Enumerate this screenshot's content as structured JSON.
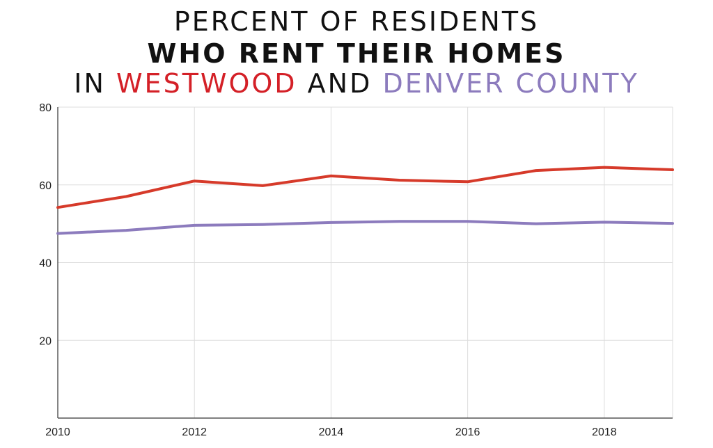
{
  "title": {
    "line1": "PERCENT OF RESIDENTS",
    "line2": "WHO RENT THEIR HOMES",
    "line3_prefix": "IN",
    "line3_series1": "WESTWOOD",
    "line3_mid": "AND",
    "line3_series2": "DENVER COUNTY"
  },
  "chart_data": {
    "type": "line",
    "x": [
      2010,
      2011,
      2012,
      2013,
      2014,
      2015,
      2016,
      2017,
      2018,
      2019
    ],
    "series": [
      {
        "name": "WESTWOOD",
        "color": "#d63a2a",
        "values": [
          54.2,
          57.0,
          61.0,
          59.8,
          62.3,
          61.2,
          60.8,
          63.7,
          64.5,
          63.9
        ]
      },
      {
        "name": "DENVER COUNTY",
        "color": "#8c7bbd",
        "values": [
          47.5,
          48.3,
          49.6,
          49.8,
          50.3,
          50.6,
          50.6,
          50.0,
          50.4,
          50.1
        ]
      }
    ],
    "xticks": [
      "2010",
      "2012",
      "2014",
      "2016",
      "2018"
    ],
    "yticks": [
      "20",
      "40",
      "60",
      "80"
    ],
    "xlim": [
      2010,
      2019
    ],
    "ylim": [
      0,
      80
    ],
    "grid": true,
    "xlabel": "",
    "ylabel": ""
  }
}
